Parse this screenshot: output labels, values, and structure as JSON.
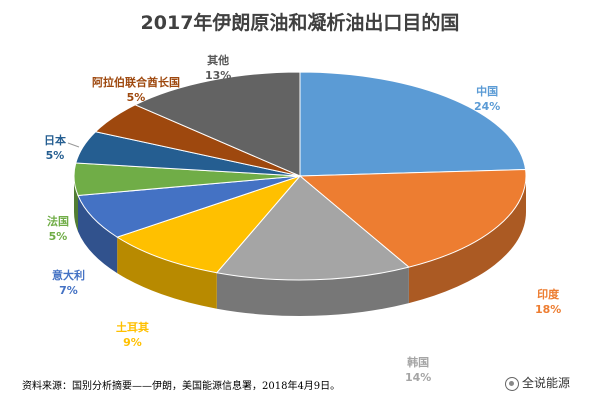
{
  "chart_data": {
    "type": "pie",
    "title": "2017年伊朗原油和凝析油出口目的国",
    "series": [
      {
        "name": "中国",
        "value": 24,
        "label": "24%",
        "color": "#5b9bd5"
      },
      {
        "name": "印度",
        "value": 18,
        "label": "18%",
        "color": "#ed7d31"
      },
      {
        "name": "韩国",
        "value": 14,
        "label": "14%",
        "color": "#a5a5a5"
      },
      {
        "name": "土耳其",
        "value": 9,
        "label": "9%",
        "color": "#ffc000"
      },
      {
        "name": "意大利",
        "value": 7,
        "label": "7%",
        "color": "#4472c4"
      },
      {
        "name": "法国",
        "value": 5,
        "label": "5%",
        "color": "#70ad47"
      },
      {
        "name": "日本",
        "value": 5,
        "label": "5%",
        "color": "#255e91"
      },
      {
        "name": "阿拉伯联合酋长国",
        "value": 5,
        "label": "5%",
        "color": "#9e480e"
      },
      {
        "name": "其他",
        "value": 13,
        "label": "13%",
        "color": "#636363"
      }
    ]
  },
  "source_note": "资料来源：国别分析摘要——伊朗，美国能源信息署，2018年4月9日。",
  "watermark": "全说能源",
  "label_colors": {
    "中国": "#5b9bd5",
    "印度": "#ed7d31",
    "韩国": "#a5a5a5",
    "土耳其": "#ffc000",
    "意大利": "#4472c4",
    "法国": "#70ad47",
    "日本": "#255e91",
    "阿拉伯联合酋长国": "#9e480e",
    "其他": "#595959"
  }
}
